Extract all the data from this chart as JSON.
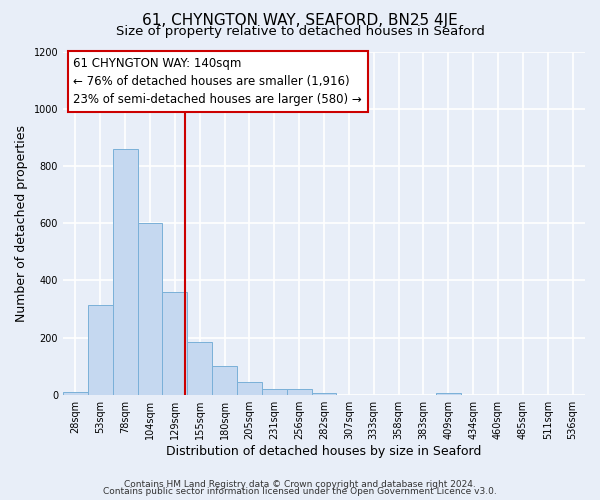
{
  "title": "61, CHYNGTON WAY, SEAFORD, BN25 4JE",
  "subtitle": "Size of property relative to detached houses in Seaford",
  "xlabel": "Distribution of detached houses by size in Seaford",
  "ylabel": "Number of detached properties",
  "bin_labels": [
    "28sqm",
    "53sqm",
    "78sqm",
    "104sqm",
    "129sqm",
    "155sqm",
    "180sqm",
    "205sqm",
    "231sqm",
    "256sqm",
    "282sqm",
    "307sqm",
    "333sqm",
    "358sqm",
    "383sqm",
    "409sqm",
    "434sqm",
    "460sqm",
    "485sqm",
    "511sqm",
    "536sqm"
  ],
  "bar_heights": [
    10,
    315,
    860,
    600,
    360,
    185,
    100,
    45,
    20,
    20,
    5,
    0,
    0,
    0,
    0,
    5,
    0,
    0,
    0,
    0,
    0
  ],
  "bar_color": "#c5d8f0",
  "bar_edge_color": "#7ab0d8",
  "vline_color": "#cc0000",
  "vline_x": 4.42,
  "annotation_title": "61 CHYNGTON WAY: 140sqm",
  "annotation_line1": "← 76% of detached houses are smaller (1,916)",
  "annotation_line2": "23% of semi-detached houses are larger (580) →",
  "annotation_box_color": "#ffffff",
  "annotation_box_edge": "#cc0000",
  "ylim": [
    0,
    1200
  ],
  "yticks": [
    0,
    200,
    400,
    600,
    800,
    1000,
    1200
  ],
  "footer1": "Contains HM Land Registry data © Crown copyright and database right 2024.",
  "footer2": "Contains public sector information licensed under the Open Government Licence v3.0.",
  "background_color": "#e8eef8",
  "grid_color": "#ffffff",
  "title_fontsize": 11,
  "subtitle_fontsize": 9.5,
  "axis_label_fontsize": 9,
  "tick_fontsize": 7,
  "annotation_fontsize": 8.5,
  "footer_fontsize": 6.5
}
